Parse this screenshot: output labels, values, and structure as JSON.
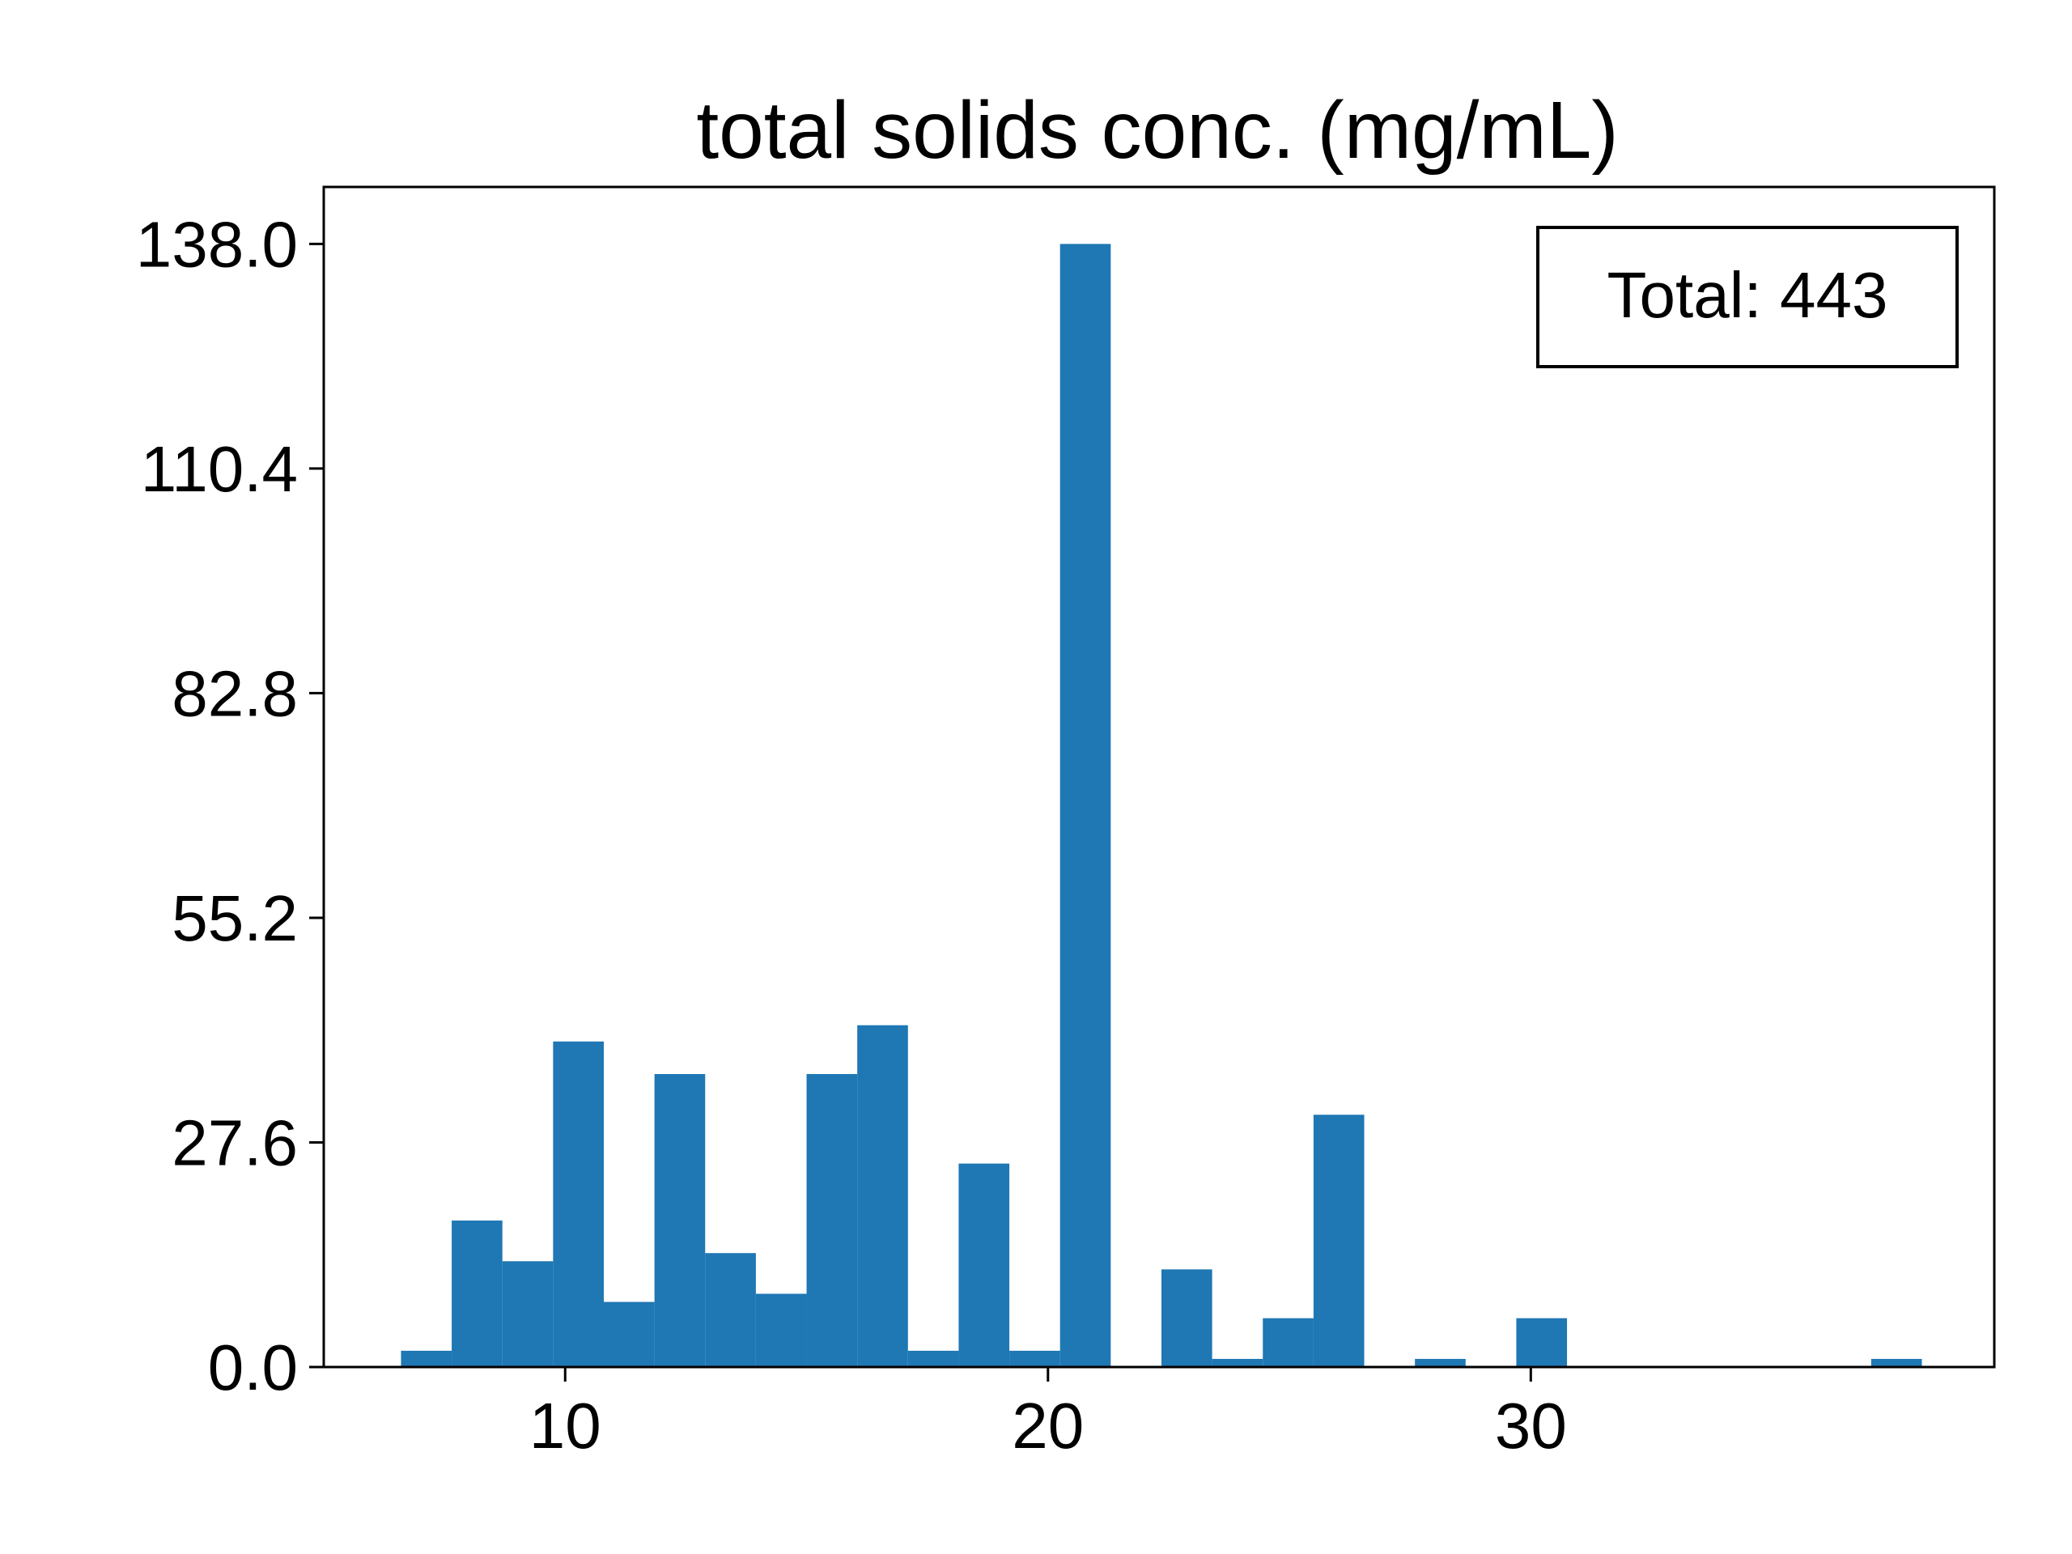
{
  "chart_data": {
    "type": "bar",
    "subtype": "histogram",
    "title": "total solids conc. (mg/mL)",
    "xlabel": "",
    "ylabel": "",
    "xlim": [
      5.0,
      39.6
    ],
    "ylim": [
      0,
      145.0
    ],
    "x_ticks": [
      10,
      20,
      30
    ],
    "x_tick_labels": [
      "10",
      "20",
      "30"
    ],
    "y_ticks": [
      0.0,
      27.6,
      55.2,
      82.8,
      110.4,
      138.0
    ],
    "y_tick_labels": [
      "0.0",
      "27.6",
      "55.2",
      "82.8",
      "110.4",
      "138.0"
    ],
    "grid": false,
    "bar_color": "#1f77b4",
    "bin_edges": [
      6.6,
      7.65,
      8.7,
      9.75,
      10.8,
      11.85,
      12.9,
      13.95,
      15.0,
      16.05,
      17.1,
      18.15,
      19.2,
      20.25,
      21.3,
      22.35,
      23.4,
      24.45,
      25.5,
      26.55,
      27.6,
      28.65,
      29.7,
      30.75,
      31.8,
      32.85,
      33.9,
      34.95,
      36.0,
      37.05,
      38.1
    ],
    "counts": [
      2,
      18,
      13,
      40,
      8,
      36,
      14,
      9,
      36,
      42,
      2,
      25,
      2,
      138,
      0,
      12,
      1,
      6,
      31,
      0,
      1,
      0,
      6,
      0,
      0,
      0,
      0,
      0,
      0,
      1
    ],
    "annotation": {
      "text": "Total: 443",
      "placement": "top-right"
    }
  }
}
